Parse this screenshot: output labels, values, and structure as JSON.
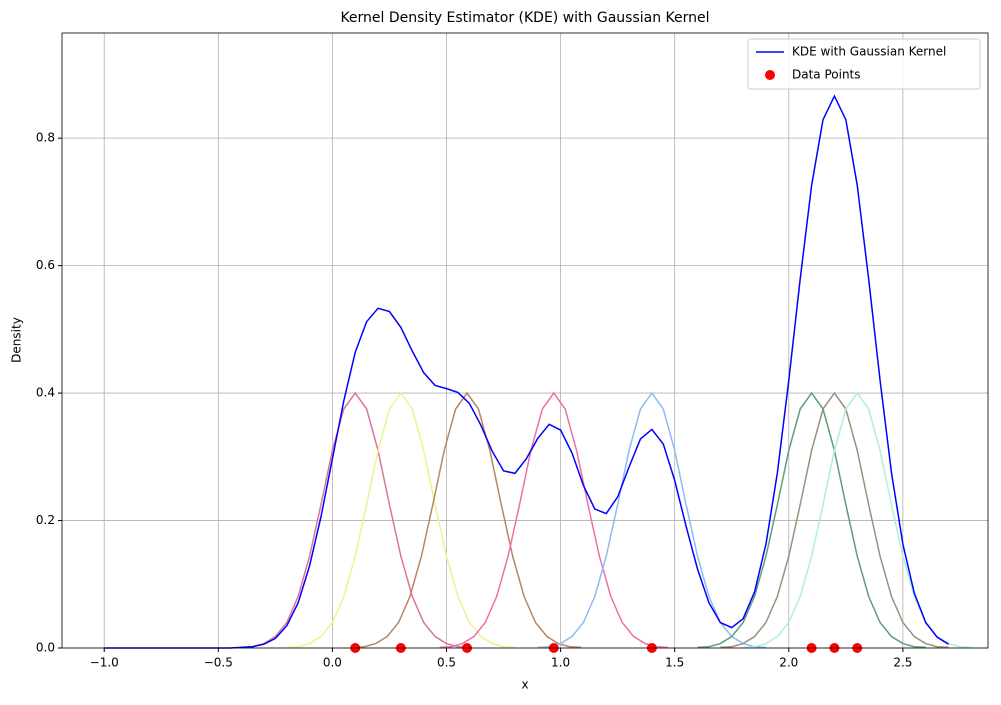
{
  "chart_data": {
    "type": "line",
    "title": "Kernel Density Estimator (KDE) with Gaussian Kernel",
    "xlabel": "x",
    "ylabel": "Density",
    "x": [
      -1,
      -0.95,
      -0.9,
      -0.85,
      -0.8,
      -0.75,
      -0.7,
      -0.65,
      -0.6,
      -0.55,
      -0.5,
      -0.45,
      -0.4,
      -0.35,
      -0.3,
      -0.25,
      -0.2,
      -0.15,
      -0.1,
      -0.05,
      0,
      0.05,
      0.1,
      0.15,
      0.2,
      0.25,
      0.3,
      0.35,
      0.4,
      0.45,
      0.5,
      0.55,
      0.6,
      0.65,
      0.7,
      0.75,
      0.8,
      0.85,
      0.9,
      0.95,
      1,
      1.05,
      1.1,
      1.15,
      1.2,
      1.25,
      1.3,
      1.35,
      1.4,
      1.45,
      1.5,
      1.55,
      1.6,
      1.65,
      1.7,
      1.75,
      1.8,
      1.85,
      1.9,
      1.95,
      2,
      2.05,
      2.1,
      2.15,
      2.2,
      2.25,
      2.3,
      2.35,
      2.4,
      2.45,
      2.5,
      2.55,
      2.6,
      2.65,
      2.7
    ],
    "series": [
      {
        "name": "KDE with Gaussian Kernel",
        "color": "#0000ff",
        "values": [
          0,
          0,
          0,
          0,
          0,
          0,
          0,
          0,
          0,
          0,
          0,
          0,
          0.001,
          0.002,
          0.006,
          0.015,
          0.035,
          0.071,
          0.129,
          0.206,
          0.297,
          0.388,
          0.464,
          0.512,
          0.533,
          0.528,
          0.503,
          0.466,
          0.432,
          0.412,
          0.407,
          0.401,
          0.384,
          0.35,
          0.309,
          0.278,
          0.274,
          0.297,
          0.329,
          0.351,
          0.342,
          0.306,
          0.255,
          0.218,
          0.211,
          0.237,
          0.284,
          0.328,
          0.343,
          0.32,
          0.263,
          0.191,
          0.124,
          0.071,
          0.04,
          0.032,
          0.046,
          0.088,
          0.163,
          0.275,
          0.42,
          0.579,
          0.726,
          0.829,
          0.866,
          0.829,
          0.726,
          0.579,
          0.42,
          0.275,
          0.163,
          0.086,
          0.04,
          0.017,
          0.006
        ]
      }
    ],
    "kernels": [
      {
        "color": "#dc7496",
        "x": [
          -0.4,
          -0.35,
          -0.3,
          -0.25,
          -0.2,
          -0.15,
          -0.1,
          -0.05,
          0,
          0.05,
          0.1,
          0.15,
          0.2,
          0.25,
          0.3,
          0.35,
          0.4,
          0.45,
          0.5,
          0.55,
          0.6
        ],
        "values": [
          0.001,
          0.002,
          0.007,
          0.018,
          0.04,
          0.081,
          0.144,
          0.225,
          0.31,
          0.375,
          0.4,
          0.375,
          0.31,
          0.225,
          0.144,
          0.081,
          0.04,
          0.018,
          0.007,
          0.002,
          0.001
        ]
      },
      {
        "color": "#eef48c",
        "x": [
          -0.2,
          -0.15,
          -0.1,
          -0.05,
          0,
          0.05,
          0.1,
          0.15,
          0.2,
          0.25,
          0.3,
          0.35,
          0.4,
          0.45,
          0.5,
          0.55,
          0.6,
          0.65,
          0.7,
          0.75,
          0.8
        ],
        "values": [
          0.001,
          0.002,
          0.007,
          0.018,
          0.04,
          0.081,
          0.144,
          0.225,
          0.31,
          0.375,
          0.4,
          0.375,
          0.31,
          0.225,
          0.144,
          0.081,
          0.04,
          0.018,
          0.007,
          0.002,
          0.001
        ]
      },
      {
        "color": "#b8875f",
        "x": [
          0.09,
          0.14,
          0.19,
          0.24,
          0.29,
          0.34,
          0.39,
          0.44,
          0.49,
          0.54,
          0.59,
          0.64,
          0.69,
          0.74,
          0.79,
          0.84,
          0.89,
          0.94,
          0.99,
          1.04,
          1.09
        ],
        "values": [
          0.001,
          0.002,
          0.007,
          0.018,
          0.04,
          0.081,
          0.144,
          0.225,
          0.31,
          0.375,
          0.4,
          0.375,
          0.31,
          0.225,
          0.144,
          0.081,
          0.04,
          0.018,
          0.007,
          0.002,
          0.001
        ]
      },
      {
        "color": "#ef6ea8",
        "x": [
          0.47,
          0.52,
          0.57,
          0.62,
          0.67,
          0.72,
          0.77,
          0.82,
          0.87,
          0.92,
          0.97,
          1.02,
          1.07,
          1.12,
          1.17,
          1.22,
          1.27,
          1.32,
          1.37,
          1.42,
          1.47
        ],
        "values": [
          0.001,
          0.002,
          0.007,
          0.018,
          0.04,
          0.081,
          0.144,
          0.225,
          0.31,
          0.375,
          0.4,
          0.375,
          0.31,
          0.225,
          0.144,
          0.081,
          0.04,
          0.018,
          0.007,
          0.002,
          0.001
        ]
      },
      {
        "color": "#8cbcf0",
        "x": [
          0.9,
          0.95,
          1,
          1.05,
          1.1,
          1.15,
          1.2,
          1.25,
          1.3,
          1.35,
          1.4,
          1.45,
          1.5,
          1.55,
          1.6,
          1.65,
          1.7,
          1.75,
          1.8,
          1.85,
          1.9
        ],
        "values": [
          0.001,
          0.002,
          0.007,
          0.018,
          0.04,
          0.081,
          0.144,
          0.225,
          0.31,
          0.375,
          0.4,
          0.375,
          0.31,
          0.225,
          0.144,
          0.081,
          0.04,
          0.018,
          0.007,
          0.002,
          0.001
        ]
      },
      {
        "color": "#5e9e78",
        "x": [
          1.6,
          1.65,
          1.7,
          1.75,
          1.8,
          1.85,
          1.9,
          1.95,
          2,
          2.05,
          2.1,
          2.15,
          2.2,
          2.25,
          2.3,
          2.35,
          2.4,
          2.45,
          2.5,
          2.55,
          2.6
        ],
        "values": [
          0.001,
          0.002,
          0.007,
          0.018,
          0.04,
          0.081,
          0.144,
          0.225,
          0.31,
          0.375,
          0.4,
          0.375,
          0.31,
          0.225,
          0.144,
          0.081,
          0.04,
          0.018,
          0.007,
          0.002,
          0.001
        ]
      },
      {
        "color": "#a08e7c",
        "x": [
          1.7,
          1.75,
          1.8,
          1.85,
          1.9,
          1.95,
          2,
          2.05,
          2.1,
          2.15,
          2.2,
          2.25,
          2.3,
          2.35,
          2.4,
          2.45,
          2.5,
          2.55,
          2.6,
          2.65,
          2.7
        ],
        "values": [
          0.001,
          0.002,
          0.007,
          0.018,
          0.04,
          0.081,
          0.144,
          0.225,
          0.31,
          0.375,
          0.4,
          0.375,
          0.31,
          0.225,
          0.144,
          0.081,
          0.04,
          0.018,
          0.007,
          0.002,
          0.001
        ]
      },
      {
        "color": "#aef0d8",
        "x": [
          1.8,
          1.85,
          1.9,
          1.95,
          2,
          2.05,
          2.1,
          2.15,
          2.2,
          2.25,
          2.3,
          2.35,
          2.4,
          2.45,
          2.5,
          2.55,
          2.6,
          2.65,
          2.7,
          2.75,
          2.8
        ],
        "values": [
          0.001,
          0.002,
          0.007,
          0.018,
          0.04,
          0.081,
          0.144,
          0.225,
          0.31,
          0.375,
          0.4,
          0.375,
          0.31,
          0.225,
          0.144,
          0.081,
          0.04,
          0.018,
          0.007,
          0.002,
          0.001
        ]
      }
    ],
    "points": {
      "name": "Data Points",
      "color": "#ff0000",
      "x": [
        0.1,
        0.3,
        0.59,
        0.97,
        1.4,
        2.1,
        2.2,
        2.3
      ],
      "values": [
        0,
        0,
        0,
        0,
        0,
        0,
        0,
        0
      ]
    },
    "xlim": [
      -1.185,
      2.873
    ],
    "ylim": [
      0,
      0.965
    ],
    "xticks": [
      {
        "value": -1,
        "label": "−1.0"
      },
      {
        "value": -0.5,
        "label": "−0.5"
      },
      {
        "value": 0,
        "label": "0.0"
      },
      0.5,
      {
        "value": 1,
        "label": "1.0"
      },
      1.5,
      {
        "value": 2,
        "label": "2.0"
      },
      2.5
    ],
    "yticks": [
      {
        "value": 0,
        "label": "0.0"
      },
      0.2,
      0.4,
      0.6,
      0.8
    ],
    "grid": true,
    "legend": "upper right"
  }
}
